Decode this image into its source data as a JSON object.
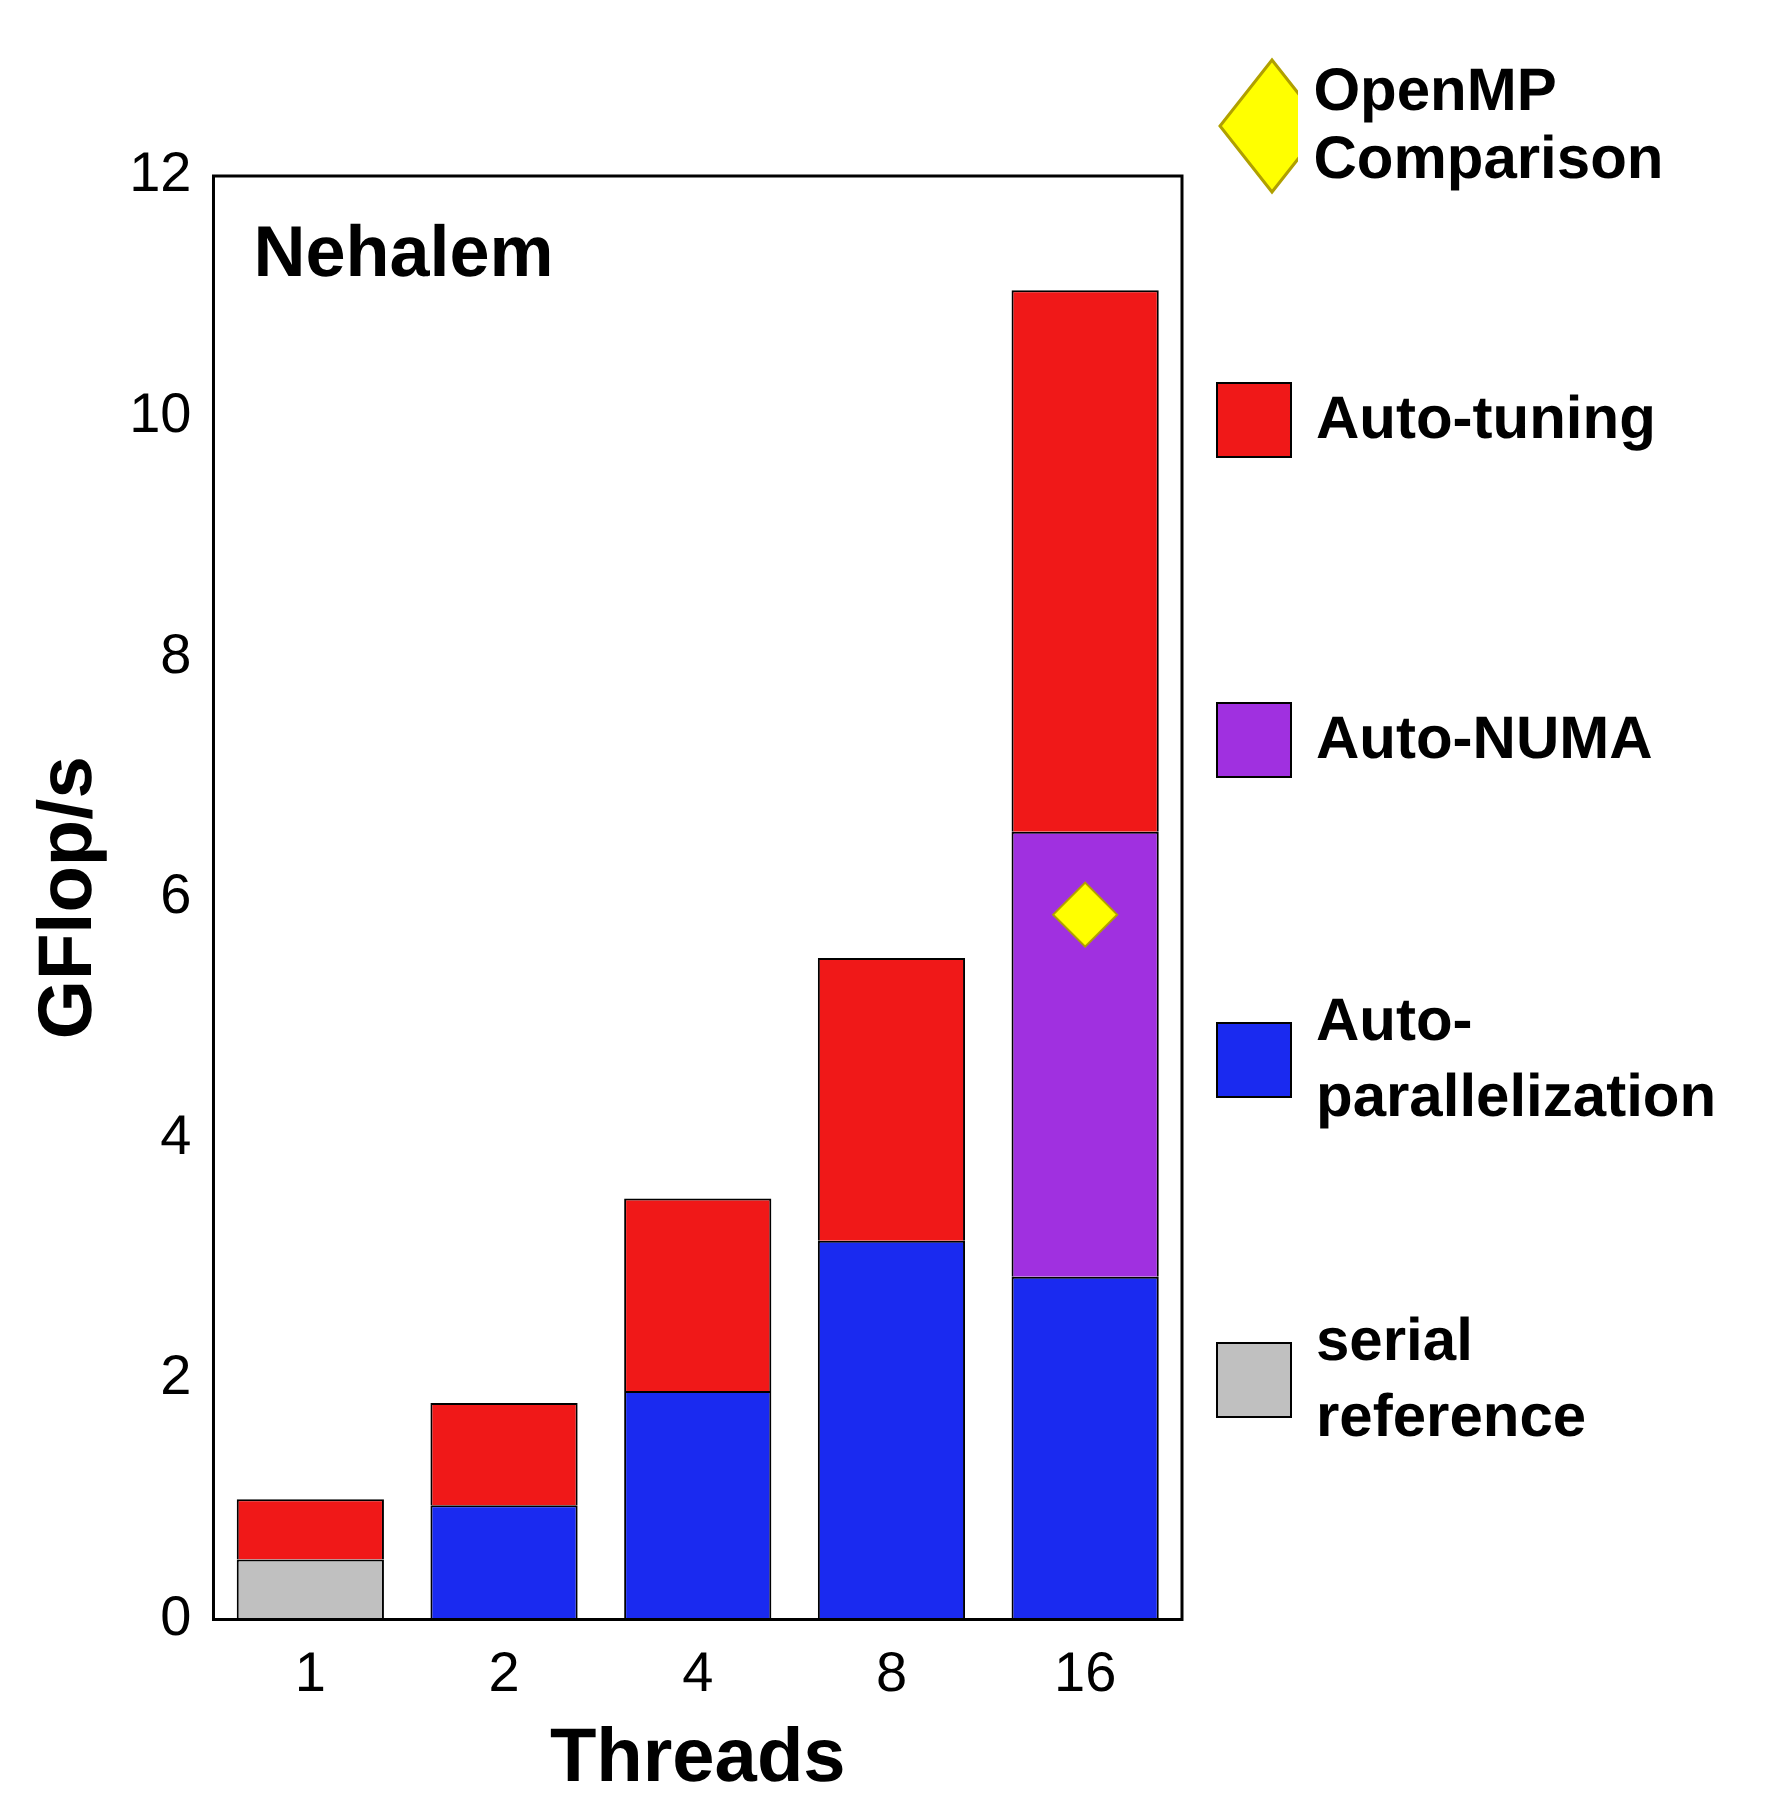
{
  "chart_data": {
    "type": "bar",
    "stacked": true,
    "xlabel": "Threads",
    "ylabel": "GFlop/s",
    "annotations": [
      "Nehalem"
    ],
    "categories": [
      "1",
      "2",
      "4",
      "8",
      "16"
    ],
    "ylim": [
      0,
      12
    ],
    "yticks": [
      0,
      2,
      4,
      6,
      8,
      10,
      12
    ],
    "grid": false,
    "legend": "right",
    "series": [
      {
        "name": "serial reference",
        "color": "#c0c0c0",
        "values": [
          0.5,
          null,
          null,
          null,
          null
        ]
      },
      {
        "name": "Auto-parallelization",
        "color": "#1a2af0",
        "values": [
          null,
          0.95,
          1.9,
          3.15,
          2.85
        ]
      },
      {
        "name": "Auto-NUMA",
        "color": "#a030e0",
        "values": [
          null,
          null,
          null,
          null,
          3.7
        ]
      },
      {
        "name": "Auto-tuning",
        "color": "#f01818",
        "values": [
          0.5,
          0.85,
          1.6,
          2.35,
          4.5
        ]
      },
      {
        "name": "OpenMP Comparison",
        "type": "scatter",
        "marker": "diamond",
        "color": "#ffff00",
        "x": [
          "16"
        ],
        "values": [
          5.86
        ]
      }
    ]
  }
}
